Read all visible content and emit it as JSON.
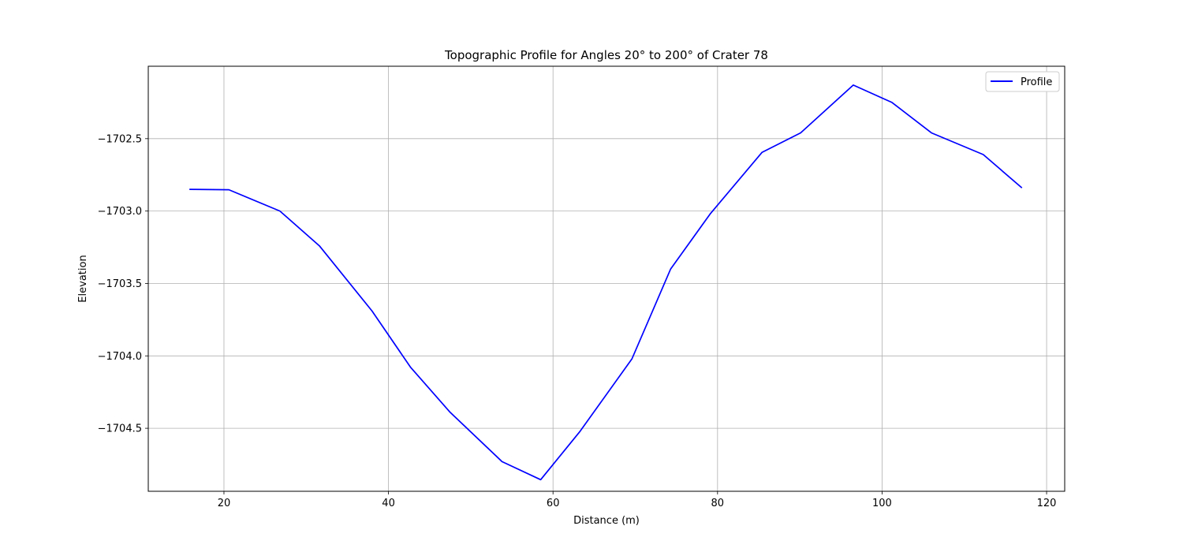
{
  "chart_data": {
    "type": "line",
    "title": "Topographic Profile for Angles 20° to 200° of Crater 78",
    "xlabel": "Distance (m)",
    "ylabel": "Elevation",
    "xlim": [
      10.8,
      122.2
    ],
    "ylim": [
      -1704.935,
      -1702.0
    ],
    "xticks": [
      20,
      40,
      60,
      80,
      100,
      120
    ],
    "yticks": [
      -1704.5,
      -1704.0,
      -1703.5,
      -1703.0,
      -1702.5
    ],
    "xtick_labels": [
      "20",
      "40",
      "60",
      "80",
      "100",
      "120"
    ],
    "ytick_labels": [
      "−1704.5",
      "−1704.0",
      "−1703.5",
      "−1703.0",
      "−1702.5"
    ],
    "grid": true,
    "legend_position": "top-right",
    "series": [
      {
        "name": "Profile",
        "color": "#0000ff",
        "x": [
          15.8,
          20.6,
          26.8,
          31.6,
          38.0,
          42.7,
          47.5,
          53.8,
          58.5,
          63.3,
          69.6,
          74.3,
          79.1,
          85.4,
          90.1,
          96.5,
          101.2,
          106.0,
          112.3,
          117.0
        ],
        "y": [
          -1702.85,
          -1702.853,
          -1703.0,
          -1703.24,
          -1703.69,
          -1704.08,
          -1704.39,
          -1704.73,
          -1704.855,
          -1704.52,
          -1704.02,
          -1703.4,
          -1703.02,
          -1702.595,
          -1702.46,
          -1702.13,
          -1702.25,
          -1702.46,
          -1702.61,
          -1702.84
        ]
      }
    ]
  }
}
